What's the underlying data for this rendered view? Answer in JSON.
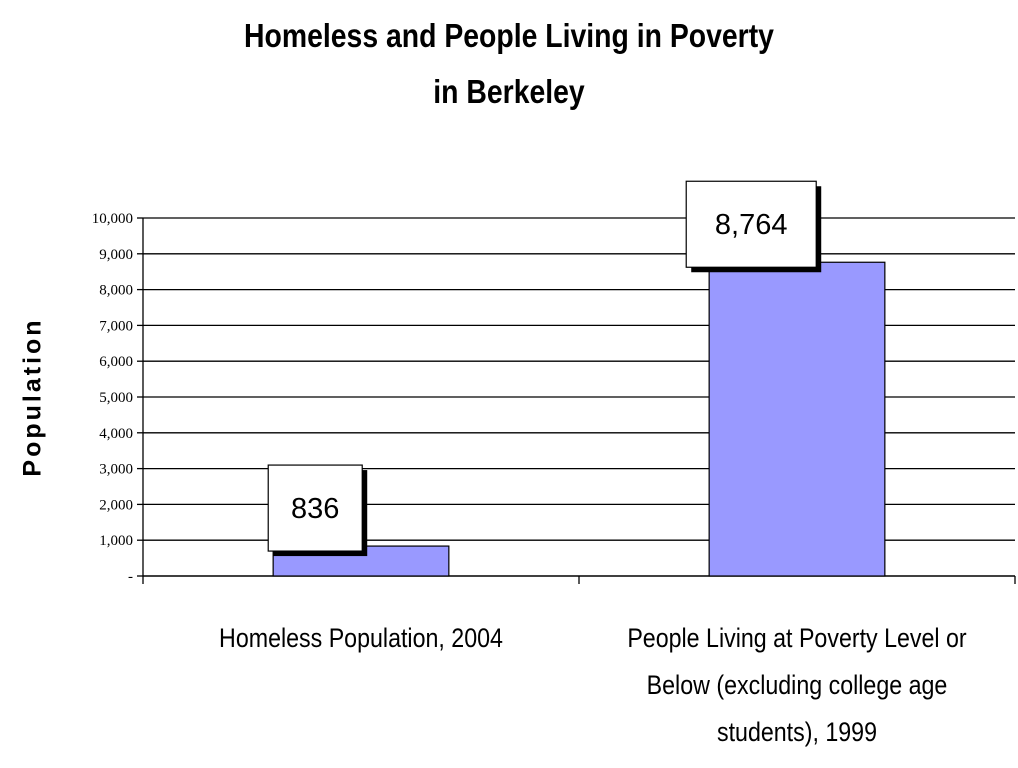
{
  "chart_data": {
    "type": "bar",
    "title": [
      "Homeless and People Living in Poverty",
      "in Berkeley"
    ],
    "ylabel": "Population",
    "xlabel": "",
    "ylim": [
      0,
      10000
    ],
    "yticks": [
      0,
      1000,
      2000,
      3000,
      4000,
      5000,
      6000,
      7000,
      8000,
      9000,
      10000
    ],
    "ytick_labels": [
      "-",
      "1,000",
      "2,000",
      "3,000",
      "4,000",
      "5,000",
      "6,000",
      "7,000",
      "8,000",
      "9,000",
      "10,000"
    ],
    "grid": true,
    "categories": [
      [
        "Homeless Population, 2004"
      ],
      [
        "People Living at Poverty Level or",
        "Below (excluding college age",
        "students), 1999"
      ]
    ],
    "values": [
      836,
      8764
    ],
    "data_labels": [
      "836",
      "8,764"
    ],
    "bar_color": "#9999ff"
  }
}
